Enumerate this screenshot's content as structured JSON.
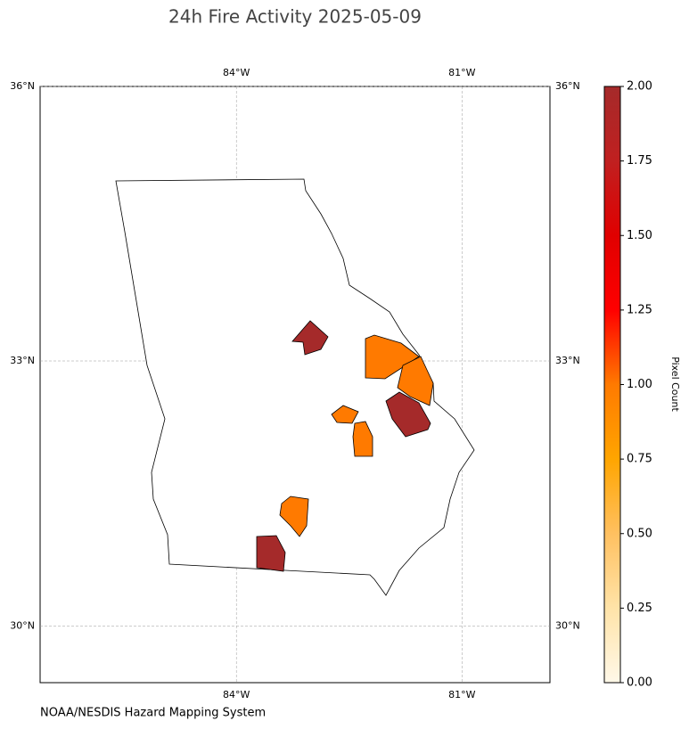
{
  "chart_data": {
    "type": "choropleth",
    "title": "24h Fire Activity 2025-05-09",
    "source": "NOAA/NESDIS Hazard Mapping System",
    "colorbar_label": "Pixel Count",
    "xlim": [
      -86.61,
      -79.83
    ],
    "ylim": [
      29.35,
      36
    ],
    "xticks": [
      {
        "value": -84,
        "label": "84°W"
      },
      {
        "value": -81,
        "label": "81°W"
      }
    ],
    "yticks": [
      {
        "value": 36,
        "label": "36°N"
      },
      {
        "value": 33,
        "label": "33°N"
      },
      {
        "value": 30,
        "label": "30°N"
      }
    ],
    "grid": true,
    "region_values": [
      2,
      1,
      1,
      2,
      1,
      1,
      1,
      2
    ],
    "colorbar_lim": [
      0,
      2
    ],
    "colorbar_ticks": [
      {
        "value": 0,
        "label": "0.00"
      },
      {
        "value": 0.25,
        "label": "0.25"
      },
      {
        "value": 0.5,
        "label": "0.50"
      },
      {
        "value": 0.75,
        "label": "0.75"
      },
      {
        "value": 1,
        "label": "1.00"
      },
      {
        "value": 1.25,
        "label": "1.25"
      },
      {
        "value": 1.5,
        "label": "1.50"
      },
      {
        "value": 1.75,
        "label": "1.75"
      },
      {
        "value": 2,
        "label": "2.00"
      }
    ],
    "colorbar_colors": [
      "#fff8e8",
      "#ffe3a8",
      "#ffc060",
      "#ffa500",
      "#ff7a00",
      "#ff0000",
      "#e00000",
      "#c02020",
      "#a52a2a"
    ]
  }
}
